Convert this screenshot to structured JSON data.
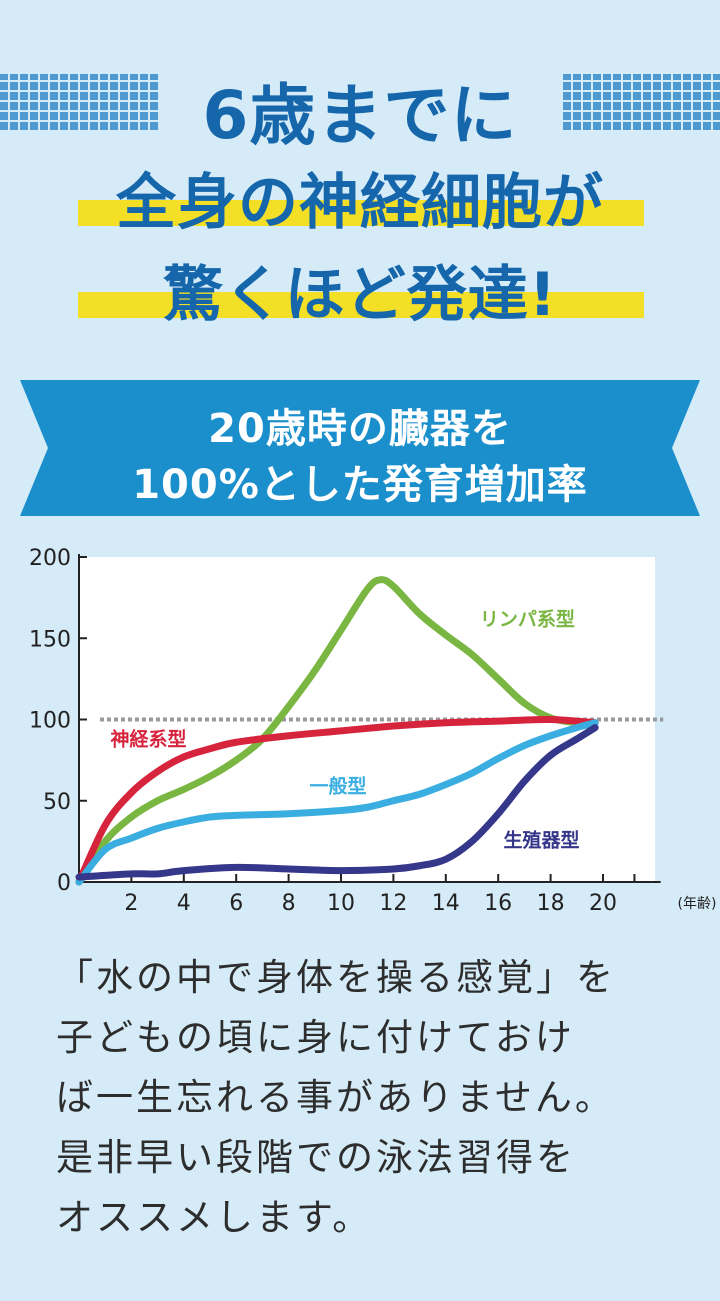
{
  "header": {
    "line1": "6歳までに",
    "line2": "全身の神経細胞が",
    "line3": "驚くほど発達!"
  },
  "banner": {
    "line1": "20歳時の臓器を",
    "line2": "100%とした発育増加率"
  },
  "colors": {
    "background": "#d5ebf8",
    "title": "#1566ab",
    "highlight": "#f4df27",
    "banner": "#1b8fcc"
  },
  "chart_data": {
    "type": "line",
    "xlabel": "(年齢)",
    "xlim": [
      0,
      22
    ],
    "ylim": [
      0,
      200
    ],
    "xticks": [
      2,
      4,
      6,
      8,
      10,
      12,
      14,
      16,
      18,
      20
    ],
    "yticks": [
      0,
      50,
      100,
      150,
      200
    ],
    "reference_line": 100,
    "series": [
      {
        "name": "リンパ系型",
        "color": "#7ab642",
        "x": [
          0,
          1,
          2,
          3,
          4,
          5,
          6,
          7,
          8,
          9,
          10,
          11,
          11.5,
          12,
          13,
          14,
          15,
          16,
          17,
          18,
          19,
          19.7
        ],
        "y": [
          0,
          25,
          40,
          50,
          57,
          65,
          75,
          88,
          108,
          130,
          155,
          180,
          186,
          182,
          165,
          152,
          140,
          125,
          110,
          101,
          98,
          98
        ]
      },
      {
        "name": "神経系型",
        "color": "#d7243d",
        "x": [
          0,
          1,
          2,
          3,
          4,
          5,
          6,
          8,
          10,
          12,
          14,
          16,
          18,
          19.7
        ],
        "y": [
          0,
          35,
          55,
          68,
          77,
          82,
          86,
          90,
          93,
          96,
          98,
          99,
          100,
          98
        ]
      },
      {
        "name": "一般型",
        "color": "#3aaee0",
        "x": [
          0,
          1,
          2,
          3,
          4,
          5,
          6,
          8,
          10,
          11,
          12,
          13,
          14,
          15,
          16,
          17,
          18,
          19,
          19.7
        ],
        "y": [
          0,
          20,
          27,
          33,
          37,
          40,
          41,
          42,
          44,
          46,
          50,
          54,
          60,
          67,
          76,
          84,
          90,
          95,
          98
        ]
      },
      {
        "name": "生殖器型",
        "color": "#35378a",
        "x": [
          0,
          2,
          3,
          4,
          6,
          8,
          10,
          12,
          13,
          14,
          15,
          16,
          17,
          18,
          19,
          19.7
        ],
        "y": [
          3,
          5,
          5,
          7,
          9,
          8,
          7,
          8,
          10,
          14,
          25,
          42,
          62,
          78,
          88,
          95
        ]
      }
    ]
  },
  "body": {
    "lines": [
      "「水の中で身体を操る感覚」を",
      "子どもの頃に身に付けておけ",
      "ば一生忘れる事がありません。",
      "是非早い段階での泳法習得を",
      "オススメします。"
    ]
  }
}
